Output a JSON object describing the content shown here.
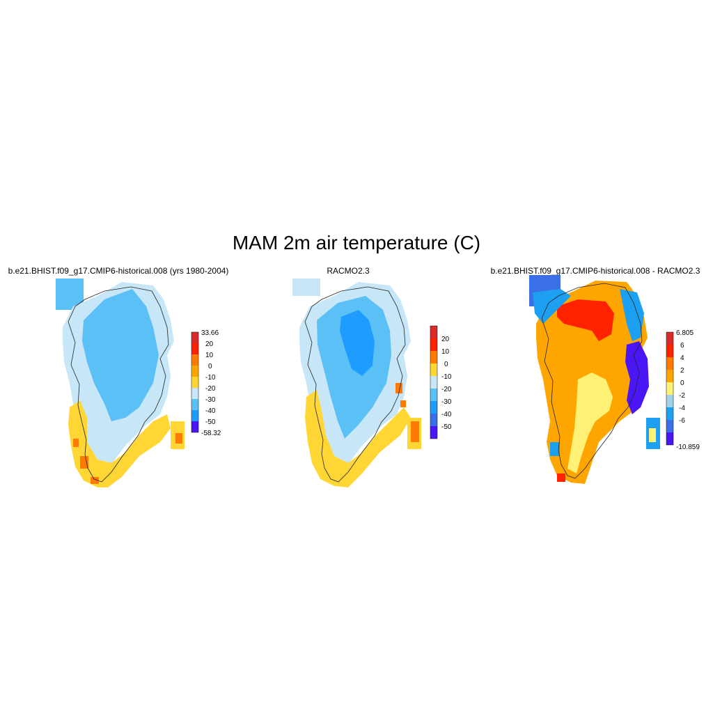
{
  "title": "MAM 2m air temperature (C)",
  "panels": [
    {
      "title": "b.e21.BHIST.f09_g17.CMIP6-historical.008 (yrs 1980-2004)",
      "colorbar": {
        "labels": [
          "33.66",
          "20",
          "10",
          "0",
          "-10",
          "-20",
          "-30",
          "-40",
          "-50",
          "-58.32"
        ],
        "colors": [
          "#d92b2b",
          "#ff2200",
          "#ff7a00",
          "#ffa500",
          "#ffd633",
          "#c7e6f7",
          "#5bc0f5",
          "#1f9cff",
          "#3b6fe8",
          "#4b16f5"
        ]
      },
      "fill_classes": {
        "land": "#c7e6f7",
        "interior": "#5bc0f5",
        "coast_south": "#ffd633",
        "coast_warm": "#ff7a00"
      }
    },
    {
      "title": "RACMO2.3",
      "colorbar": {
        "labels": [
          "20",
          "10",
          "0",
          "-10",
          "-20",
          "-30",
          "-40",
          "-50"
        ],
        "colors": [
          "#d92b2b",
          "#ff2200",
          "#ff7a00",
          "#ffd633",
          "#c7e6f7",
          "#5bc0f5",
          "#1f9cff",
          "#3b6fe8",
          "#4b16f5"
        ]
      },
      "fill_classes": {
        "land": "#c7e6f7",
        "interior": "#5bc0f5",
        "core": "#1f9cff",
        "coast_south": "#ffd633",
        "coast_warm": "#ff7a00"
      }
    },
    {
      "title": "b.e21.BHIST.f09_g17.CMIP6-historical.008 - RACMO2.3",
      "colorbar": {
        "labels": [
          "6.805",
          "6",
          "4",
          "2",
          "0",
          "-2",
          "-4",
          "-6",
          "-10.859"
        ],
        "colors": [
          "#d92b2b",
          "#ff2200",
          "#ff7a00",
          "#ffa500",
          "#fff176",
          "#9fd3ea",
          "#1ea0f2",
          "#3b6fe8",
          "#4b16f5"
        ]
      },
      "fill_classes": {
        "land": "#ffa500",
        "north": "#ff2200",
        "south_band": "#fff176",
        "coast_east": "#4b16f5",
        "coast_blue": "#1ea0f2"
      }
    }
  ]
}
